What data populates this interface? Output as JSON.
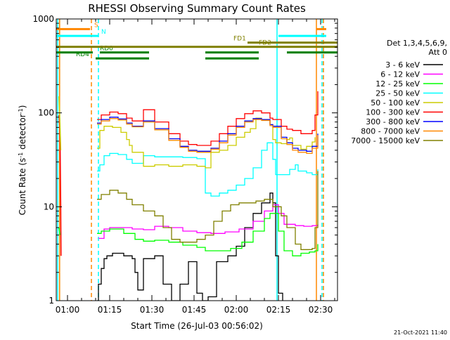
{
  "chart_data": {
    "type": "line",
    "title": "RHESSI Observing Summary Count Rates",
    "xlabel": "Start Time (26-Jul-03 00:56:02)",
    "ylabel_main": "Count Rate (s",
    "ylabel_sup1": "-1",
    "ylabel_mid": " detector",
    "ylabel_sup2": "-1",
    "ylabel_end": ")",
    "y_scale": "log",
    "ylim": [
      1,
      1000
    ],
    "x_range_minutes": [
      0,
      100
    ],
    "x_ticks": [
      {
        "m": 4,
        "label": "01:00"
      },
      {
        "m": 19,
        "label": "01:15"
      },
      {
        "m": 34,
        "label": "01:30"
      },
      {
        "m": 49,
        "label": "01:45"
      },
      {
        "m": 64,
        "label": "02:00"
      },
      {
        "m": 79,
        "label": "02:15"
      },
      {
        "m": 94,
        "label": "02:30"
      }
    ],
    "y_ticks": [
      {
        "v": 1,
        "label": "1"
      },
      {
        "v": 10,
        "label": "10"
      },
      {
        "v": 100,
        "label": "100"
      },
      {
        "v": 1000,
        "label": "1000"
      }
    ],
    "legend": {
      "header1": "Det 1,3,4,5,6,9,",
      "header2": "Att 0",
      "placement": "right"
    },
    "series": [
      {
        "name": "3 - 6 keV",
        "color": "#000000",
        "points": [
          [
            14.5,
            1
          ],
          [
            15,
            1.5
          ],
          [
            16,
            2.2
          ],
          [
            17,
            2.8
          ],
          [
            18,
            3
          ],
          [
            20,
            3.2
          ],
          [
            24,
            3.0
          ],
          [
            27,
            2.8
          ],
          [
            28,
            2
          ],
          [
            29,
            1.3
          ],
          [
            31,
            2.8
          ],
          [
            35,
            3.0
          ],
          [
            38,
            1.5
          ],
          [
            41,
            1
          ],
          [
            44,
            1.5
          ],
          [
            47,
            2.6
          ],
          [
            50,
            1.2
          ],
          [
            52,
            1
          ],
          [
            54,
            1.1
          ],
          [
            57,
            2.6
          ],
          [
            61,
            3.0
          ],
          [
            64,
            3.8
          ],
          [
            67,
            6
          ],
          [
            70,
            8.5
          ],
          [
            73,
            11
          ],
          [
            76,
            14
          ],
          [
            77,
            11
          ],
          [
            78,
            3
          ],
          [
            79,
            1.2
          ],
          [
            80.5,
            1
          ]
        ]
      },
      {
        "name": "6 - 12 keV",
        "color": "#ff00ff",
        "points": [
          [
            15,
            4.6
          ],
          [
            17,
            5.8
          ],
          [
            19,
            6.0
          ],
          [
            23,
            6.0
          ],
          [
            27,
            5.8
          ],
          [
            31,
            5.7
          ],
          [
            35,
            6.2
          ],
          [
            40,
            6.0
          ],
          [
            45,
            5.5
          ],
          [
            50,
            5.3
          ],
          [
            55,
            5.2
          ],
          [
            60,
            5.4
          ],
          [
            65,
            5.8
          ],
          [
            70,
            7
          ],
          [
            74,
            9
          ],
          [
            77,
            10.5
          ],
          [
            79,
            8.5
          ],
          [
            81,
            6.5
          ],
          [
            85,
            6.3
          ],
          [
            88,
            6.2
          ],
          [
            91,
            6.3
          ],
          [
            93,
            6.5
          ]
        ]
      },
      {
        "name": "12 - 25 keV",
        "color": "#00ff00",
        "points": [
          [
            14.5,
            5.2
          ],
          [
            16,
            5.5
          ],
          [
            19,
            5.8
          ],
          [
            24,
            5.2
          ],
          [
            28,
            4.5
          ],
          [
            31,
            4.3
          ],
          [
            35,
            4.4
          ],
          [
            40,
            4.2
          ],
          [
            45,
            3.9
          ],
          [
            50,
            3.7
          ],
          [
            53,
            3.4
          ],
          [
            57,
            3.4
          ],
          [
            62,
            3.6
          ],
          [
            66,
            4.2
          ],
          [
            70,
            5.5
          ],
          [
            74,
            7.5
          ],
          [
            76,
            8.5
          ],
          [
            79,
            5.5
          ],
          [
            81,
            3.4
          ],
          [
            84,
            3.0
          ],
          [
            87,
            3.2
          ],
          [
            90,
            3.3
          ],
          [
            92,
            3.4
          ],
          [
            93,
            4
          ]
        ]
      },
      {
        "name": "25 - 50 keV",
        "color": "#00ffff",
        "points": [
          [
            14.5,
            24
          ],
          [
            15.5,
            28
          ],
          [
            17,
            35
          ],
          [
            19,
            37
          ],
          [
            22,
            36
          ],
          [
            25,
            32
          ],
          [
            27,
            29
          ],
          [
            31,
            35
          ],
          [
            35,
            34
          ],
          [
            40,
            34
          ],
          [
            45,
            33.5
          ],
          [
            50,
            32.5
          ],
          [
            53,
            14
          ],
          [
            55,
            13
          ],
          [
            58,
            14
          ],
          [
            61,
            15
          ],
          [
            64,
            17
          ],
          [
            67,
            20
          ],
          [
            70,
            26
          ],
          [
            73,
            40
          ],
          [
            75,
            48
          ],
          [
            77,
            32
          ],
          [
            78,
            22
          ],
          [
            80,
            22
          ],
          [
            83,
            25
          ],
          [
            85,
            28
          ],
          [
            86,
            24
          ],
          [
            89,
            23
          ],
          [
            91,
            22
          ],
          [
            93,
            25
          ]
        ]
      },
      {
        "name": "50 - 100 keV",
        "color": "#cccc00",
        "points": [
          [
            14.5,
            42
          ],
          [
            15.5,
            65
          ],
          [
            17,
            72
          ],
          [
            20,
            70
          ],
          [
            23,
            62
          ],
          [
            25,
            52
          ],
          [
            26,
            45
          ],
          [
            27,
            38
          ],
          [
            30,
            38
          ],
          [
            31,
            27
          ],
          [
            35,
            28
          ],
          [
            40,
            27
          ],
          [
            45,
            28
          ],
          [
            50,
            27
          ],
          [
            53,
            26
          ],
          [
            55,
            38
          ],
          [
            58,
            40
          ],
          [
            61,
            45
          ],
          [
            64,
            55
          ],
          [
            67,
            62
          ],
          [
            69,
            68
          ],
          [
            71,
            88
          ],
          [
            73,
            84
          ],
          [
            76,
            75
          ],
          [
            77,
            52
          ],
          [
            78,
            48
          ],
          [
            80,
            47
          ],
          [
            82,
            52
          ],
          [
            83,
            54
          ],
          [
            84,
            45
          ],
          [
            87,
            41
          ],
          [
            89,
            44
          ],
          [
            91,
            49
          ],
          [
            92,
            55
          ]
        ]
      },
      {
        "name": "100 - 300 keV",
        "color": "#ff0000",
        "points": [
          [
            14.5,
            85
          ],
          [
            16,
            95
          ],
          [
            19,
            102
          ],
          [
            22,
            98
          ],
          [
            25,
            88
          ],
          [
            27,
            82
          ],
          [
            31,
            108
          ],
          [
            35,
            80
          ],
          [
            40,
            60
          ],
          [
            44,
            50
          ],
          [
            47,
            46
          ],
          [
            50,
            45
          ],
          [
            55,
            50
          ],
          [
            58,
            60
          ],
          [
            61,
            72
          ],
          [
            64,
            87
          ],
          [
            67,
            98
          ],
          [
            70,
            105
          ],
          [
            73,
            100
          ],
          [
            76,
            88
          ],
          [
            77,
            85
          ],
          [
            80,
            72
          ],
          [
            82,
            67
          ],
          [
            84,
            65
          ],
          [
            87,
            60
          ],
          [
            90,
            60
          ],
          [
            91,
            65
          ],
          [
            92,
            95
          ],
          [
            93,
            170
          ]
        ]
      },
      {
        "name": "300 - 800 keV",
        "color": "#0000ff",
        "points": [
          [
            14.5,
            78
          ],
          [
            16,
            85
          ],
          [
            19,
            90
          ],
          [
            22,
            86
          ],
          [
            25,
            78
          ],
          [
            27,
            72
          ],
          [
            31,
            82
          ],
          [
            35,
            68
          ],
          [
            40,
            53
          ],
          [
            44,
            44
          ],
          [
            47,
            40
          ],
          [
            50,
            39
          ],
          [
            55,
            42
          ],
          [
            58,
            50
          ],
          [
            61,
            60
          ],
          [
            64,
            72
          ],
          [
            67,
            82
          ],
          [
            70,
            87
          ],
          [
            73,
            85
          ],
          [
            76,
            75
          ],
          [
            77,
            72
          ],
          [
            80,
            55
          ],
          [
            82,
            48
          ],
          [
            84,
            42
          ],
          [
            86,
            40
          ],
          [
            89,
            39
          ],
          [
            91,
            44
          ],
          [
            93,
            60
          ]
        ]
      },
      {
        "name": "800 - 7000 keV",
        "color": "#ff8800",
        "points": [
          [
            14.5,
            76
          ],
          [
            16,
            82
          ],
          [
            19,
            87
          ],
          [
            22,
            84
          ],
          [
            25,
            76
          ],
          [
            27,
            71
          ],
          [
            31,
            80
          ],
          [
            35,
            66
          ],
          [
            40,
            51
          ],
          [
            44,
            43
          ],
          [
            47,
            39
          ],
          [
            50,
            38
          ],
          [
            55,
            41
          ],
          [
            58,
            48
          ],
          [
            61,
            58
          ],
          [
            64,
            70
          ],
          [
            67,
            80
          ],
          [
            70,
            85
          ],
          [
            73,
            83
          ],
          [
            76,
            73
          ],
          [
            77,
            70
          ],
          [
            80,
            53
          ],
          [
            82,
            46
          ],
          [
            84,
            40
          ],
          [
            86,
            38
          ],
          [
            89,
            37
          ],
          [
            91,
            42
          ],
          [
            93,
            58
          ]
        ]
      },
      {
        "name": "7000 - 15000 keV",
        "color": "#808000",
        "points": [
          [
            14.5,
            12
          ],
          [
            16,
            13.5
          ],
          [
            19,
            15
          ],
          [
            22,
            14
          ],
          [
            25,
            12
          ],
          [
            27,
            10.5
          ],
          [
            31,
            9
          ],
          [
            35,
            8
          ],
          [
            38,
            6
          ],
          [
            41,
            4.5
          ],
          [
            44,
            4.2
          ],
          [
            47,
            4.2
          ],
          [
            50,
            4.5
          ],
          [
            53,
            5
          ],
          [
            56,
            7
          ],
          [
            59,
            9
          ],
          [
            62,
            10.5
          ],
          [
            65,
            11
          ],
          [
            68,
            11
          ],
          [
            71,
            11.5
          ],
          [
            74,
            12
          ],
          [
            77,
            10
          ],
          [
            80,
            8
          ],
          [
            82,
            6
          ],
          [
            85,
            4
          ],
          [
            87,
            3.5
          ],
          [
            89,
            3.5
          ],
          [
            91,
            3.6
          ],
          [
            92,
            6
          ],
          [
            93,
            24
          ]
        ]
      }
    ],
    "left_edge_segments": [
      {
        "color": "#ff0000",
        "points": [
          [
            1,
            95
          ],
          [
            1.2,
            70
          ],
          [
            1.4,
            40
          ],
          [
            1.6,
            10
          ],
          [
            1.7,
            3
          ]
        ]
      },
      {
        "color": "#cccc00",
        "points": [
          [
            1,
            150
          ],
          [
            1.3,
            80
          ],
          [
            1.6,
            40
          ]
        ]
      },
      {
        "color": "#00ff00",
        "points": [
          [
            1,
            6
          ],
          [
            1.3,
            5
          ]
        ]
      }
    ],
    "vertical_lines": [
      {
        "m": 0.5,
        "color": "#00ffff",
        "style": "solid"
      },
      {
        "m": 1.2,
        "color": "#ff8800",
        "style": "solid"
      },
      {
        "m": 12.5,
        "color": "#ff8800",
        "style": "dashed"
      },
      {
        "m": 15,
        "color": "#00ffff",
        "style": "dashed"
      },
      {
        "m": 78.5,
        "color": "#00ffff",
        "style": "solid"
      },
      {
        "m": 92.5,
        "color": "#ff8800",
        "style": "solid"
      },
      {
        "m": 94.5,
        "color": "#00ffff",
        "style": "dashed"
      },
      {
        "m": 95,
        "color": "#ff8800",
        "style": "dashed"
      }
    ],
    "flag_bars": [
      {
        "label": "S",
        "color": "#ff8800",
        "y": 780,
        "segments": [
          [
            0,
            12
          ],
          [
            92.5,
            96
          ]
        ],
        "label_at": 13.5
      },
      {
        "label": "N",
        "color": "#00ffff",
        "y": 660,
        "segments": [
          [
            0,
            15
          ],
          [
            79,
            96
          ]
        ],
        "label_at": 16
      },
      {
        "label": "FD1",
        "color": "#808000",
        "y": 560,
        "segments": [
          [
            68,
            100
          ]
        ],
        "label_at": 63
      },
      {
        "label": "FD2",
        "color": "#808000",
        "y": 505,
        "segments": [
          [
            0,
            100
          ]
        ],
        "label_at": 72
      },
      {
        "label": "RD0",
        "color": "#008000",
        "y": 440,
        "segments": [
          [
            0,
            13
          ],
          [
            15.5,
            33
          ],
          [
            53,
            72
          ],
          [
            82,
            100
          ]
        ],
        "label_at": 15.5
      },
      {
        "label": "RD4",
        "color": "#008000",
        "y": 380,
        "segments": [
          [
            14,
            33
          ],
          [
            53,
            72
          ]
        ],
        "label_at": 7
      }
    ],
    "timestamp": "21-Oct-2021 11:40"
  }
}
